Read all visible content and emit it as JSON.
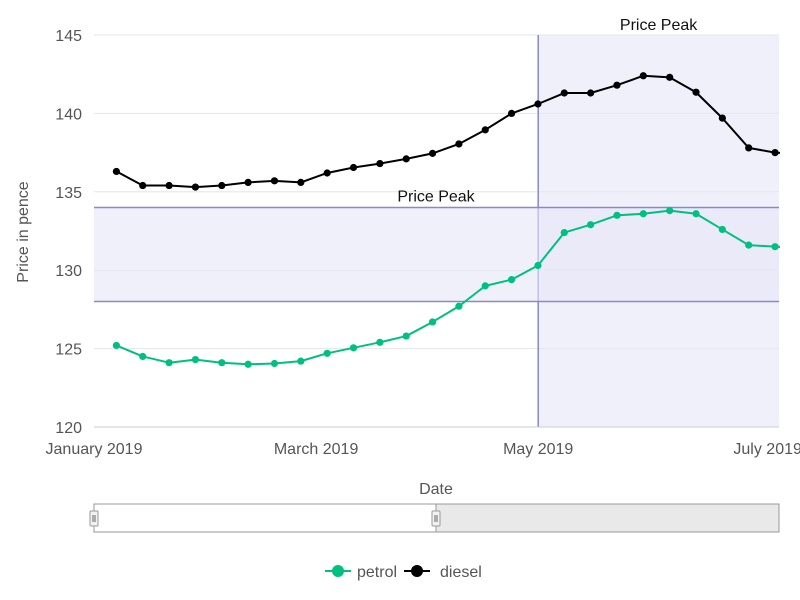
{
  "chart_data": {
    "type": "line",
    "xlabel": "Date",
    "ylabel": "Price in pence",
    "ylim": [
      120,
      145
    ],
    "yticks": [
      120,
      125,
      130,
      135,
      140,
      145
    ],
    "xticks": [
      {
        "label": "January 2019",
        "week": 0
      },
      {
        "label": "March 2019",
        "week": 8.43
      },
      {
        "label": "May 2019",
        "week": 16.86
      },
      {
        "label": "July 2019",
        "week": 25.57
      }
    ],
    "weeks_shown": 26,
    "grid": true,
    "legend_position": "bottom",
    "series": [
      {
        "name": "petrol",
        "color": "#00c080",
        "values": [
          125.2,
          124.5,
          124.1,
          124.3,
          124.1,
          124.0,
          124.05,
          124.2,
          124.7,
          125.05,
          125.4,
          125.8,
          126.7,
          127.7,
          129.0,
          129.4,
          130.3,
          132.4,
          132.9,
          133.5,
          133.6,
          133.8,
          133.6,
          132.6,
          131.6,
          131.5,
          131.4
        ]
      },
      {
        "name": "diesel",
        "color": "#000000",
        "values": [
          136.3,
          135.4,
          135.4,
          135.3,
          135.4,
          135.6,
          135.7,
          135.6,
          136.2,
          136.55,
          136.8,
          137.1,
          137.45,
          138.05,
          138.95,
          140.0,
          140.6,
          141.3,
          141.3,
          141.8,
          142.4,
          142.3,
          141.35,
          139.7,
          137.8,
          137.5,
          137.4
        ]
      }
    ],
    "annotations": [
      {
        "label": "Price Peak",
        "axis": "x",
        "from_week": 16.86,
        "to_week": 26
      },
      {
        "label": "Price Peak",
        "axis": "y",
        "from": 128,
        "to": 134
      }
    ],
    "colors": {
      "band_fill": "#e6e6f8",
      "band_line": "#8888cc",
      "grid": "#e6e6e6"
    }
  }
}
